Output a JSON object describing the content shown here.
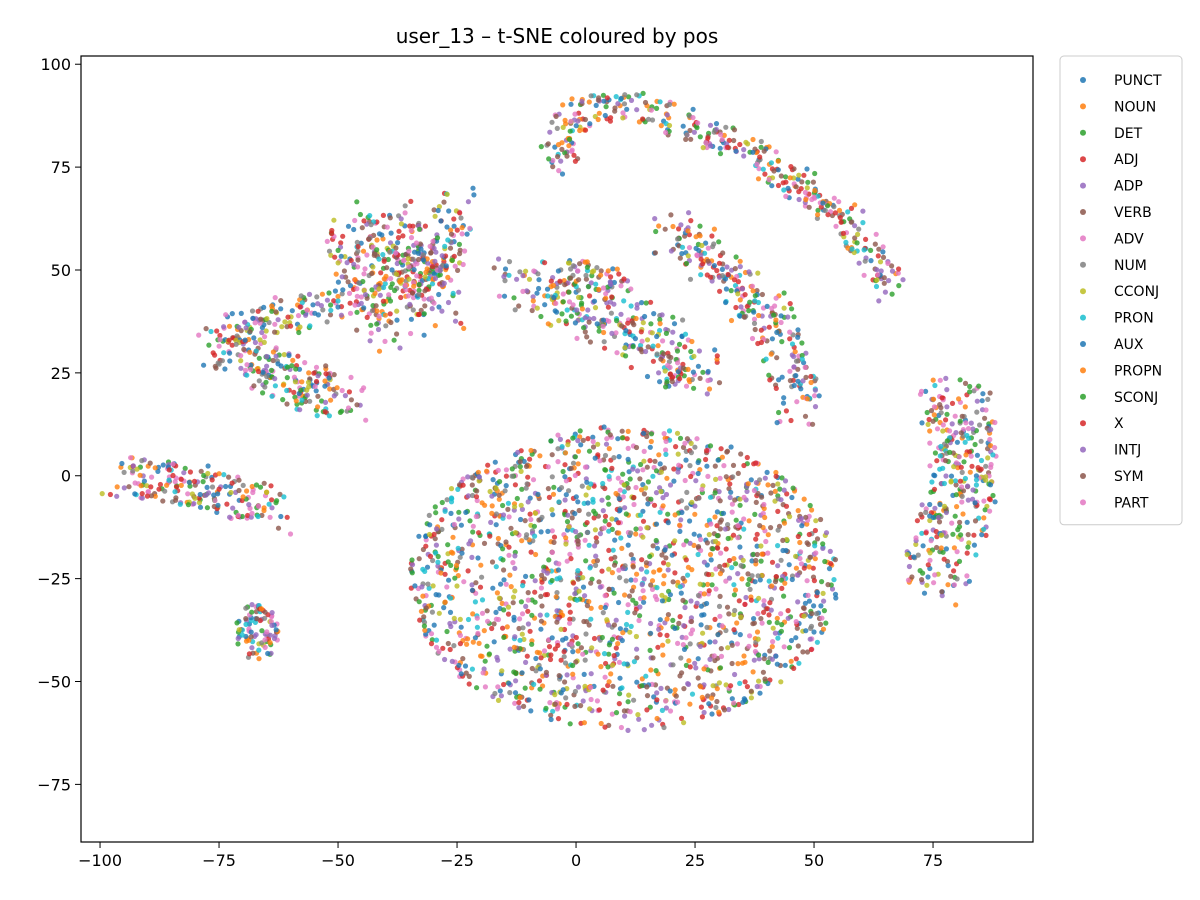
{
  "chart_data": {
    "type": "scatter",
    "title": "user_13 – t-SNE coloured by pos",
    "xlabel": "",
    "ylabel": "",
    "xlim": [
      -104,
      96
    ],
    "ylim": [
      -89,
      102
    ],
    "xticks": [
      -100,
      -75,
      -50,
      -25,
      0,
      25,
      50,
      75
    ],
    "yticks": [
      -75,
      -50,
      -25,
      0,
      25,
      50,
      75,
      100
    ],
    "grid": false,
    "legend_position": "outside-right",
    "series": [
      {
        "name": "PUNCT",
        "color": "#1f77b4"
      },
      {
        "name": "NOUN",
        "color": "#ff7f0e"
      },
      {
        "name": "DET",
        "color": "#2ca02c"
      },
      {
        "name": "ADJ",
        "color": "#d62728"
      },
      {
        "name": "ADP",
        "color": "#9467bd"
      },
      {
        "name": "VERB",
        "color": "#8c564b"
      },
      {
        "name": "ADV",
        "color": "#e377c2"
      },
      {
        "name": "NUM",
        "color": "#7f7f7f"
      },
      {
        "name": "CCONJ",
        "color": "#bcbd22"
      },
      {
        "name": "PRON",
        "color": "#17becf"
      },
      {
        "name": "AUX",
        "color": "#1f77b4"
      },
      {
        "name": "PROPN",
        "color": "#ff7f0e"
      },
      {
        "name": "SCONJ",
        "color": "#2ca02c"
      },
      {
        "name": "X",
        "color": "#d62728"
      },
      {
        "name": "INTJ",
        "color": "#9467bd"
      },
      {
        "name": "SYM",
        "color": "#8c564b"
      },
      {
        "name": "PART",
        "color": "#e377c2"
      }
    ],
    "clusters": [
      {
        "shape": "ellipse",
        "cx": 10,
        "cy": -25,
        "rx": 45,
        "ry": 37,
        "angle": 0,
        "n": 1900
      },
      {
        "shape": "polyline",
        "points": [
          [
            -40,
            62
          ],
          [
            -36,
            50
          ],
          [
            -30,
            40
          ]
        ],
        "width": 7,
        "n": 200
      },
      {
        "shape": "polyline",
        "points": [
          [
            -25,
            66
          ],
          [
            -28,
            55
          ],
          [
            -33,
            45
          ]
        ],
        "width": 5,
        "n": 130
      },
      {
        "shape": "polyline",
        "points": [
          [
            -75,
            32
          ],
          [
            -64,
            26
          ],
          [
            -55,
            21
          ],
          [
            -48,
            18
          ]
        ],
        "width": 5,
        "n": 220
      },
      {
        "shape": "polyline",
        "points": [
          [
            -72,
            35
          ],
          [
            -58,
            40
          ],
          [
            -50,
            42
          ]
        ],
        "width": 4,
        "n": 110
      },
      {
        "shape": "polyline",
        "points": [
          [
            -48,
            60
          ],
          [
            -44,
            45
          ],
          [
            -40,
            33
          ]
        ],
        "width": 5,
        "n": 130
      },
      {
        "shape": "polyline",
        "points": [
          [
            -95,
            0
          ],
          [
            -80,
            -2
          ],
          [
            -70,
            -6
          ],
          [
            -63,
            -10
          ]
        ],
        "width": 5,
        "n": 200
      },
      {
        "shape": "ellipse",
        "cx": -67,
        "cy": -38,
        "rx": 4.5,
        "ry": 7,
        "angle": 0,
        "n": 90
      },
      {
        "shape": "polyline",
        "points": [
          [
            -12,
            48
          ],
          [
            0,
            42
          ],
          [
            12,
            36
          ],
          [
            22,
            28
          ],
          [
            26,
            23
          ]
        ],
        "width": 6,
        "n": 300
      },
      {
        "shape": "polyline",
        "points": [
          [
            -2,
            50
          ],
          [
            10,
            46
          ]
        ],
        "width": 3,
        "n": 60
      },
      {
        "shape": "polyline",
        "points": [
          [
            20,
            60
          ],
          [
            35,
            45
          ],
          [
            43,
            35
          ],
          [
            45,
            25
          ],
          [
            47,
            15
          ]
        ],
        "width": 5,
        "n": 260
      },
      {
        "shape": "polyline",
        "points": [
          [
            -5,
            75
          ],
          [
            0,
            88
          ],
          [
            10,
            90
          ],
          [
            22,
            86
          ],
          [
            35,
            80
          ],
          [
            48,
            70
          ],
          [
            58,
            60
          ],
          [
            67,
            45
          ]
        ],
        "width": 3.5,
        "n": 380
      },
      {
        "shape": "polyline",
        "points": [
          [
            79,
            19
          ],
          [
            82,
            5
          ],
          [
            80,
            -10
          ],
          [
            75,
            -25
          ]
        ],
        "width": 7,
        "n": 350
      }
    ]
  }
}
